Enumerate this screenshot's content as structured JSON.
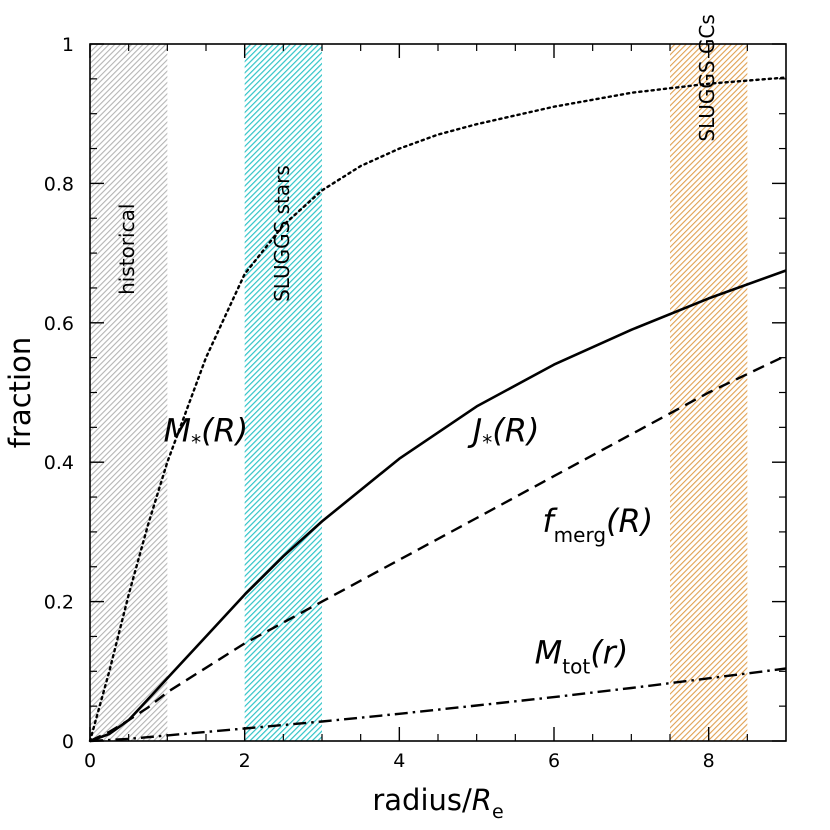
{
  "chart_data": {
    "type": "line",
    "xlabel": {
      "main": "radius/",
      "italic": "R",
      "sub": "e"
    },
    "ylabel": "fraction",
    "xlim": [
      0,
      9
    ],
    "ylim": [
      0,
      1
    ],
    "xticks": [
      0,
      2,
      4,
      6,
      8
    ],
    "yticks": [
      0,
      0.2,
      0.4,
      0.6,
      0.8,
      1
    ],
    "ytick_labels": [
      "0",
      "0.2",
      "0.4",
      "0.6",
      "0.8",
      "1"
    ],
    "grid": false,
    "bands": [
      {
        "label": "historical",
        "x": [
          0,
          1
        ],
        "color": "#b4b4b4"
      },
      {
        "label": "SLUGGS stars",
        "x": [
          2,
          3
        ],
        "color": "#2fc4c8"
      },
      {
        "label": "SLUGGS GCs",
        "x": [
          7.5,
          8.5
        ],
        "color": "#e0a050"
      }
    ],
    "series": [
      {
        "label": {
          "italic": "M",
          "sub": "*",
          "tail": "(R)"
        },
        "style": "dotted",
        "x": [
          0,
          0.25,
          0.5,
          0.75,
          1,
          1.5,
          2,
          2.5,
          3,
          3.5,
          4,
          4.5,
          5,
          6,
          7,
          8,
          9
        ],
        "y": [
          0,
          0.1,
          0.21,
          0.31,
          0.4,
          0.55,
          0.67,
          0.74,
          0.79,
          0.825,
          0.85,
          0.87,
          0.885,
          0.91,
          0.93,
          0.943,
          0.952
        ]
      },
      {
        "label": {
          "italic": "J",
          "sub": "*",
          "tail": "(R)"
        },
        "style": "solid",
        "x": [
          0,
          0.25,
          0.5,
          0.75,
          1,
          1.5,
          2,
          2.5,
          3,
          4,
          5,
          6,
          7,
          8,
          9
        ],
        "y": [
          0,
          0.01,
          0.03,
          0.06,
          0.09,
          0.15,
          0.21,
          0.265,
          0.315,
          0.405,
          0.48,
          0.54,
          0.59,
          0.635,
          0.675
        ]
      },
      {
        "label": {
          "italic": "f",
          "sub": "merg",
          "tail": "(R)"
        },
        "style": "dashed",
        "x": [
          0,
          0.25,
          0.5,
          0.75,
          1,
          1.5,
          2,
          3,
          4,
          5,
          6,
          7,
          8,
          9
        ],
        "y": [
          0,
          0.013,
          0.03,
          0.048,
          0.07,
          0.105,
          0.14,
          0.2,
          0.26,
          0.32,
          0.38,
          0.44,
          0.5,
          0.553
        ]
      },
      {
        "label": {
          "italic": "M",
          "sub": "tot",
          "tail": "(r)"
        },
        "style": "dashdot",
        "x": [
          0,
          0.5,
          1,
          2,
          3,
          4,
          5,
          6,
          7,
          8,
          9
        ],
        "y": [
          0,
          0.003,
          0.008,
          0.018,
          0.028,
          0.039,
          0.051,
          0.063,
          0.076,
          0.09,
          0.104
        ]
      }
    ]
  }
}
